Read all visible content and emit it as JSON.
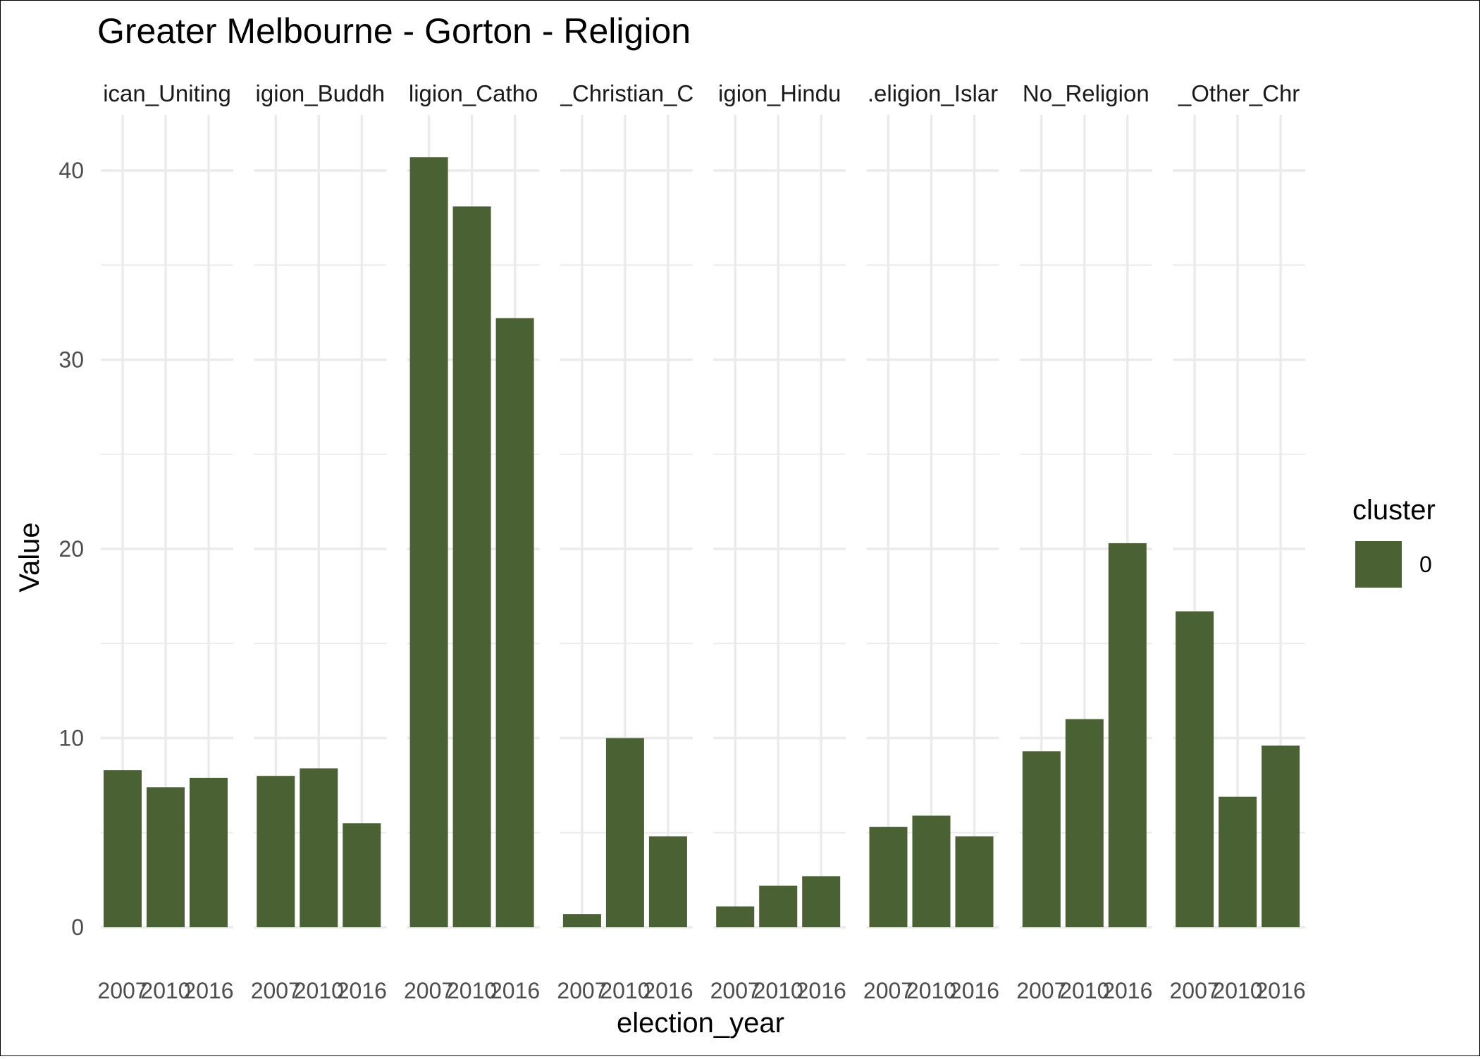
{
  "chart_data": {
    "type": "bar",
    "title": "Greater Melbourne - Gorton - Religion",
    "xlabel": "election_year",
    "ylabel": "Value",
    "ylim": [
      0,
      42
    ],
    "yticks": [
      0,
      10,
      20,
      30,
      40
    ],
    "grid": true,
    "legend": {
      "title": "cluster",
      "entries": [
        "0"
      ],
      "placement": "right"
    },
    "colors": {
      "bar": "#4a6133"
    },
    "categories": [
      "2007",
      "2010",
      "2016"
    ],
    "facets": [
      {
        "label": "ican_Uniting",
        "values": [
          8.3,
          7.4,
          7.9
        ]
      },
      {
        "label": "igion_Buddh",
        "values": [
          8.0,
          8.4,
          5.5
        ]
      },
      {
        "label": "ligion_Catho",
        "values": [
          40.7,
          38.1,
          32.2
        ]
      },
      {
        "label": "_Christian_C",
        "values": [
          0.7,
          10.0,
          4.8
        ]
      },
      {
        "label": "igion_Hindu",
        "values": [
          1.1,
          2.2,
          2.7
        ]
      },
      {
        "label": ".eligion_Islar",
        "values": [
          5.3,
          5.9,
          4.8
        ]
      },
      {
        "label": "No_Religion",
        "values": [
          9.3,
          11.0,
          20.3
        ]
      },
      {
        "label": "_Other_Chr",
        "values": [
          16.7,
          6.9,
          9.6
        ]
      }
    ]
  }
}
